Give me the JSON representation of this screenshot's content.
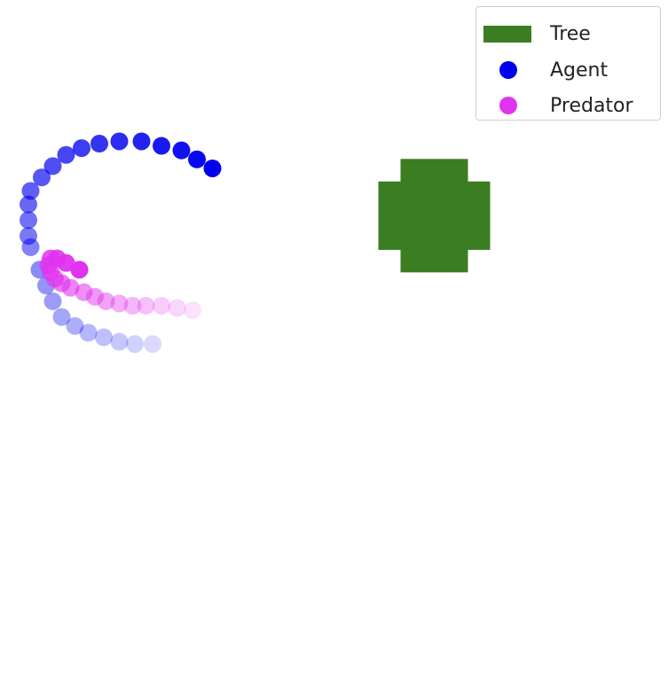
{
  "chart_data": {
    "type": "scatter",
    "title": "",
    "xlabel": "",
    "ylabel": "",
    "xlim": [
      0,
      30
    ],
    "ylim": [
      0,
      30
    ],
    "axes": "off",
    "grid": false,
    "legend_position": "top-right",
    "tree": {
      "name": "Tree",
      "color": "#3a7d22",
      "cells": [
        [
          18,
          18
        ],
        [
          19,
          18
        ],
        [
          20,
          18
        ],
        [
          17,
          19
        ],
        [
          18,
          19
        ],
        [
          19,
          19
        ],
        [
          20,
          19
        ],
        [
          21,
          19
        ],
        [
          17,
          20
        ],
        [
          18,
          20
        ],
        [
          19,
          20
        ],
        [
          20,
          20
        ],
        [
          21,
          20
        ],
        [
          17,
          21
        ],
        [
          18,
          21
        ],
        [
          19,
          21
        ],
        [
          20,
          21
        ],
        [
          21,
          21
        ],
        [
          18,
          22
        ],
        [
          19,
          22
        ],
        [
          20,
          22
        ]
      ]
    },
    "series": [
      {
        "name": "Agent",
        "color": "#0000ee",
        "points": [
          [
            6.8,
            14.8
          ],
          [
            6.0,
            14.8
          ],
          [
            5.3,
            14.9
          ],
          [
            4.6,
            15.1
          ],
          [
            3.9,
            15.3
          ],
          [
            3.3,
            15.6
          ],
          [
            2.7,
            16.0
          ],
          [
            2.3,
            16.7
          ],
          [
            2.0,
            17.4
          ],
          [
            1.7,
            18.1
          ],
          [
            1.3,
            19.1
          ],
          [
            1.2,
            19.6
          ],
          [
            1.2,
            20.3
          ],
          [
            1.2,
            21.0
          ],
          [
            1.3,
            21.6
          ],
          [
            1.8,
            22.2
          ],
          [
            2.3,
            22.7
          ],
          [
            2.9,
            23.2
          ],
          [
            3.6,
            23.5
          ],
          [
            4.4,
            23.7
          ],
          [
            5.3,
            23.8
          ],
          [
            6.3,
            23.8
          ],
          [
            7.2,
            23.6
          ],
          [
            8.1,
            23.4
          ],
          [
            8.8,
            23.0
          ],
          [
            9.5,
            22.6
          ]
        ]
      },
      {
        "name": "Predator",
        "color": "#e033ee",
        "points": [
          [
            8.6,
            16.3
          ],
          [
            7.9,
            16.4
          ],
          [
            7.2,
            16.5
          ],
          [
            6.5,
            16.5
          ],
          [
            5.9,
            16.5
          ],
          [
            5.3,
            16.6
          ],
          [
            4.7,
            16.7
          ],
          [
            4.2,
            16.9
          ],
          [
            3.7,
            17.1
          ],
          [
            3.1,
            17.3
          ],
          [
            2.7,
            17.5
          ],
          [
            2.4,
            17.7
          ],
          [
            2.2,
            18.0
          ],
          [
            2.1,
            18.3
          ],
          [
            2.2,
            18.6
          ],
          [
            2.5,
            18.6
          ],
          [
            2.9,
            18.4
          ],
          [
            3.5,
            18.1
          ]
        ]
      }
    ]
  },
  "legend": {
    "items": [
      {
        "label": "Tree",
        "color": "#3a7d22"
      },
      {
        "label": "Agent",
        "color": "#0000ee"
      },
      {
        "label": "Predator",
        "color": "#e033ee"
      }
    ]
  }
}
